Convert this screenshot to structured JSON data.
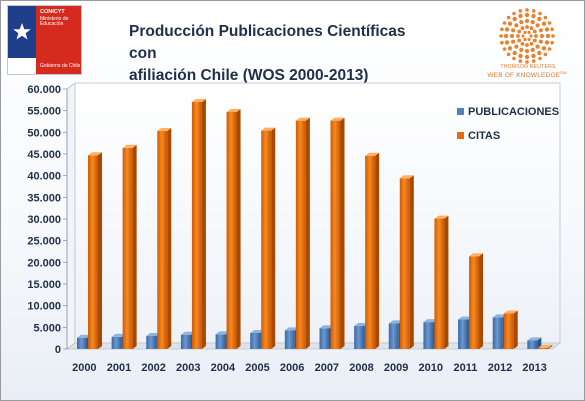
{
  "logos": {
    "left": {
      "name": "CONICYT",
      "line1": "Ministerio de",
      "line2": "Educación",
      "footer": "Gobierno de Chile"
    },
    "right": {
      "line1": "THOMSON REUTERS",
      "line2": "WEB OF KNOWLEDGE",
      "sup": "SM"
    }
  },
  "colors": {
    "publicaciones": "#4f81bd",
    "citas": "#e46c0a",
    "axis_text": "#1f2f4a",
    "gov_blue": "#1f3f8a",
    "gov_red": "#d52b1e"
  },
  "chart_data": {
    "type": "bar",
    "title": "Producción Publicaciones Científicas con afiliación Chile (WOS 2000-2013)",
    "title_lines": [
      "Producción Publicaciones Científicas con",
      "afiliación Chile (WOS 2000-2013)"
    ],
    "categories": [
      "2000",
      "2001",
      "2002",
      "2003",
      "2004",
      "2005",
      "2006",
      "2007",
      "2008",
      "2009",
      "2010",
      "2011",
      "2012",
      "2013"
    ],
    "series": [
      {
        "name": "PUBLICACIONES",
        "values": [
          2600,
          2800,
          3000,
          3300,
          3400,
          3700,
          4300,
          4800,
          5300,
          5900,
          6200,
          6800,
          7300,
          2000
        ]
      },
      {
        "name": "CITAS",
        "values": [
          44700,
          46400,
          50300,
          57000,
          54700,
          50400,
          52700,
          52700,
          44600,
          39400,
          30100,
          21400,
          8200,
          300
        ]
      }
    ],
    "ylim": [
      0,
      60000
    ],
    "yticks": [
      0,
      5000,
      10000,
      15000,
      20000,
      25000,
      30000,
      35000,
      40000,
      45000,
      50000,
      55000,
      60000
    ],
    "ytick_labels": [
      "0",
      "5.000",
      "10.000",
      "15.000",
      "20.000",
      "25.000",
      "30.000",
      "35.000",
      "40.000",
      "45.000",
      "50.000",
      "55.000",
      "60.000"
    ],
    "xlabel": "",
    "ylabel": "",
    "legend_position": "right",
    "grid": false,
    "style": "3d-column"
  }
}
